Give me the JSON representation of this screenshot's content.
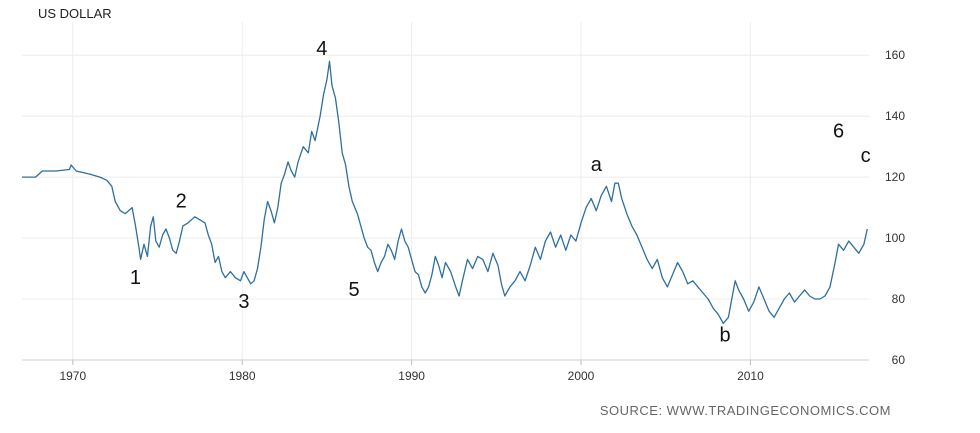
{
  "chart_data": {
    "type": "line",
    "title": "US DOLLAR",
    "source": "SOURCE: WWW.TRADINGECONOMICS.COM",
    "xlim": [
      1967,
      2017
    ],
    "ylim": [
      60,
      165
    ],
    "x_ticks": [
      {
        "value": 1970,
        "label": "1970"
      },
      {
        "value": 1980,
        "label": "1980"
      },
      {
        "value": 1990,
        "label": "1990"
      },
      {
        "value": 2000,
        "label": "2000"
      },
      {
        "value": 2010,
        "label": "2010"
      }
    ],
    "y_ticks": [
      {
        "value": 60,
        "label": "60"
      },
      {
        "value": 80,
        "label": "80"
      },
      {
        "value": 100,
        "label": "100"
      },
      {
        "value": 120,
        "label": "120"
      },
      {
        "value": 140,
        "label": "140"
      },
      {
        "value": 160,
        "label": "160"
      }
    ],
    "grid": true,
    "series": [
      {
        "color": "#2f6f9f",
        "points": [
          [
            1967.0,
            120
          ],
          [
            1967.8,
            120
          ],
          [
            1968.2,
            122
          ],
          [
            1969.0,
            122
          ],
          [
            1969.8,
            122.5
          ],
          [
            1969.9,
            124
          ],
          [
            1970.2,
            122
          ],
          [
            1971.0,
            121
          ],
          [
            1971.6,
            120
          ],
          [
            1972.0,
            119
          ],
          [
            1972.3,
            117
          ],
          [
            1972.5,
            112
          ],
          [
            1972.8,
            109
          ],
          [
            1973.1,
            108
          ],
          [
            1973.5,
            110
          ],
          [
            1973.7,
            104
          ],
          [
            1973.9,
            97
          ],
          [
            1974.0,
            93
          ],
          [
            1974.2,
            98
          ],
          [
            1974.4,
            94
          ],
          [
            1974.6,
            104
          ],
          [
            1974.75,
            107
          ],
          [
            1974.9,
            99
          ],
          [
            1975.1,
            97
          ],
          [
            1975.3,
            101
          ],
          [
            1975.5,
            103
          ],
          [
            1975.7,
            100
          ],
          [
            1975.9,
            96
          ],
          [
            1976.1,
            95
          ],
          [
            1976.3,
            99
          ],
          [
            1976.5,
            104
          ],
          [
            1976.8,
            105
          ],
          [
            1977.0,
            106
          ],
          [
            1977.2,
            107
          ],
          [
            1977.5,
            106
          ],
          [
            1977.8,
            105
          ],
          [
            1978.0,
            101
          ],
          [
            1978.2,
            98
          ],
          [
            1978.4,
            92
          ],
          [
            1978.6,
            94
          ],
          [
            1978.8,
            89
          ],
          [
            1979.0,
            87
          ],
          [
            1979.3,
            89
          ],
          [
            1979.6,
            87
          ],
          [
            1979.9,
            86
          ],
          [
            1980.1,
            89
          ],
          [
            1980.3,
            87
          ],
          [
            1980.5,
            85
          ],
          [
            1980.7,
            86
          ],
          [
            1980.9,
            90
          ],
          [
            1981.1,
            97
          ],
          [
            1981.3,
            106
          ],
          [
            1981.5,
            112
          ],
          [
            1981.7,
            109
          ],
          [
            1981.9,
            105
          ],
          [
            1982.1,
            110
          ],
          [
            1982.3,
            118
          ],
          [
            1982.5,
            121
          ],
          [
            1982.7,
            125
          ],
          [
            1982.9,
            122
          ],
          [
            1983.1,
            120
          ],
          [
            1983.3,
            125
          ],
          [
            1983.6,
            130
          ],
          [
            1983.9,
            128
          ],
          [
            1984.1,
            135
          ],
          [
            1984.3,
            132
          ],
          [
            1984.6,
            140
          ],
          [
            1984.8,
            147
          ],
          [
            1985.0,
            152
          ],
          [
            1985.15,
            158
          ],
          [
            1985.3,
            150
          ],
          [
            1985.5,
            146
          ],
          [
            1985.7,
            138
          ],
          [
            1985.9,
            128
          ],
          [
            1986.1,
            124
          ],
          [
            1986.3,
            117
          ],
          [
            1986.5,
            112
          ],
          [
            1986.8,
            108
          ],
          [
            1987.0,
            104
          ],
          [
            1987.2,
            100
          ],
          [
            1987.4,
            97
          ],
          [
            1987.6,
            96
          ],
          [
            1987.8,
            92
          ],
          [
            1988.0,
            89
          ],
          [
            1988.2,
            92
          ],
          [
            1988.4,
            94
          ],
          [
            1988.6,
            98
          ],
          [
            1988.8,
            96
          ],
          [
            1989.0,
            93
          ],
          [
            1989.2,
            99
          ],
          [
            1989.4,
            103
          ],
          [
            1989.6,
            99
          ],
          [
            1989.8,
            97
          ],
          [
            1990.0,
            93
          ],
          [
            1990.2,
            89
          ],
          [
            1990.4,
            88
          ],
          [
            1990.6,
            84
          ],
          [
            1990.8,
            82
          ],
          [
            1991.0,
            84
          ],
          [
            1991.2,
            88
          ],
          [
            1991.4,
            94
          ],
          [
            1991.6,
            91
          ],
          [
            1991.8,
            87
          ],
          [
            1992.0,
            92
          ],
          [
            1992.3,
            89
          ],
          [
            1992.6,
            84
          ],
          [
            1992.8,
            81
          ],
          [
            1993.0,
            86
          ],
          [
            1993.3,
            93
          ],
          [
            1993.6,
            90
          ],
          [
            1993.9,
            94
          ],
          [
            1994.2,
            93
          ],
          [
            1994.5,
            89
          ],
          [
            1994.8,
            95
          ],
          [
            1995.1,
            91
          ],
          [
            1995.3,
            85
          ],
          [
            1995.5,
            81
          ],
          [
            1995.8,
            84
          ],
          [
            1996.1,
            86
          ],
          [
            1996.4,
            89
          ],
          [
            1996.7,
            86
          ],
          [
            1997.0,
            91
          ],
          [
            1997.3,
            97
          ],
          [
            1997.6,
            93
          ],
          [
            1997.9,
            99
          ],
          [
            1998.2,
            102
          ],
          [
            1998.5,
            97
          ],
          [
            1998.8,
            101
          ],
          [
            1999.1,
            96
          ],
          [
            1999.4,
            101
          ],
          [
            1999.7,
            99
          ],
          [
            2000.0,
            105
          ],
          [
            2000.3,
            110
          ],
          [
            2000.6,
            113
          ],
          [
            2000.9,
            109
          ],
          [
            2001.2,
            114
          ],
          [
            2001.5,
            117
          ],
          [
            2001.8,
            112
          ],
          [
            2002.0,
            118
          ],
          [
            2002.2,
            118
          ],
          [
            2002.4,
            113
          ],
          [
            2002.7,
            108
          ],
          [
            2003.0,
            104
          ],
          [
            2003.3,
            101
          ],
          [
            2003.6,
            97
          ],
          [
            2003.9,
            93
          ],
          [
            2004.2,
            90
          ],
          [
            2004.5,
            93
          ],
          [
            2004.8,
            87
          ],
          [
            2005.1,
            84
          ],
          [
            2005.4,
            88
          ],
          [
            2005.7,
            92
          ],
          [
            2006.0,
            89
          ],
          [
            2006.3,
            85
          ],
          [
            2006.6,
            86
          ],
          [
            2006.9,
            84
          ],
          [
            2007.2,
            82
          ],
          [
            2007.5,
            80
          ],
          [
            2007.8,
            77
          ],
          [
            2008.1,
            75
          ],
          [
            2008.4,
            72
          ],
          [
            2008.7,
            74
          ],
          [
            2008.9,
            80
          ],
          [
            2009.1,
            86
          ],
          [
            2009.3,
            83
          ],
          [
            2009.6,
            80
          ],
          [
            2009.9,
            76
          ],
          [
            2010.2,
            79
          ],
          [
            2010.5,
            84
          ],
          [
            2010.8,
            80
          ],
          [
            2011.1,
            76
          ],
          [
            2011.4,
            74
          ],
          [
            2011.7,
            77
          ],
          [
            2012.0,
            80
          ],
          [
            2012.3,
            82
          ],
          [
            2012.6,
            79
          ],
          [
            2012.9,
            81
          ],
          [
            2013.2,
            83
          ],
          [
            2013.5,
            81
          ],
          [
            2013.8,
            80
          ],
          [
            2014.1,
            80
          ],
          [
            2014.4,
            81
          ],
          [
            2014.7,
            84
          ],
          [
            2015.0,
            92
          ],
          [
            2015.2,
            98
          ],
          [
            2015.5,
            96
          ],
          [
            2015.8,
            99
          ],
          [
            2016.1,
            97
          ],
          [
            2016.4,
            95
          ],
          [
            2016.7,
            98
          ],
          [
            2016.9,
            103
          ]
        ]
      }
    ],
    "annotations": [
      {
        "text": "1",
        "x": 1973.7,
        "y": 85
      },
      {
        "text": "2",
        "x": 1976.4,
        "y": 110
      },
      {
        "text": "3",
        "x": 1980.1,
        "y": 77
      },
      {
        "text": "4",
        "x": 1984.7,
        "y": 160
      },
      {
        "text": "5",
        "x": 1986.6,
        "y": 81
      },
      {
        "text": "a",
        "x": 2000.9,
        "y": 122
      },
      {
        "text": "b",
        "x": 2008.5,
        "y": 66
      },
      {
        "text": "6",
        "x": 2015.2,
        "y": 133
      },
      {
        "text": "c",
        "x": 2016.8,
        "y": 125
      }
    ]
  }
}
